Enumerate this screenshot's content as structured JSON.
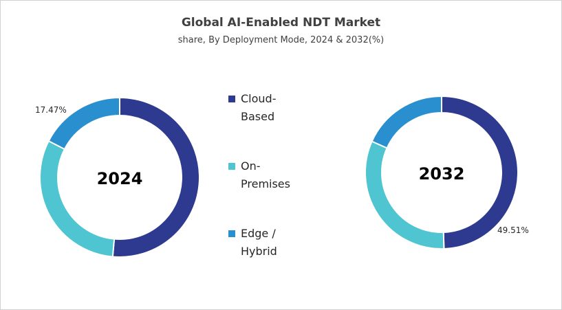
{
  "chart_data": [
    {
      "type": "pie",
      "title": "Global AI-Enabled NDT Market",
      "subtitle": "share, By Deployment Mode, 2024 & 2032(%)",
      "center_label": "2024",
      "categories": [
        "Cloud-Based",
        "On-Premises",
        "Edge / Hybrid"
      ],
      "values": [
        51.4,
        31.13,
        17.47
      ],
      "data_labels": {
        "Edge / Hybrid": "17.47%"
      },
      "colors": [
        "#2e3a8f",
        "#4ec5d0",
        "#2a8fce"
      ],
      "legend": "center"
    },
    {
      "type": "pie",
      "center_label": "2032",
      "categories": [
        "Cloud-Based",
        "On-Premises",
        "Edge / Hybrid"
      ],
      "values": [
        49.51,
        32.19,
        18.3
      ],
      "data_labels": {
        "Cloud-Based": "49.51%"
      },
      "colors": [
        "#2e3a8f",
        "#4ec5d0",
        "#2a8fce"
      ]
    }
  ],
  "legend": [
    {
      "line1": "Cloud-",
      "line2": "Based",
      "color": "#2e3a8f"
    },
    {
      "line1": "On-",
      "line2": "Premises",
      "color": "#4ec5d0"
    },
    {
      "line1": "Edge /",
      "line2": "Hybrid",
      "color": "#2a8fce"
    }
  ]
}
